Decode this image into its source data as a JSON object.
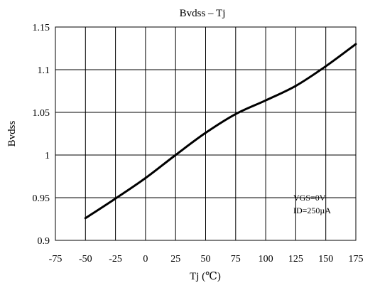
{
  "chart_data": {
    "type": "line",
    "title": "Bvdss  – Tj",
    "xlabel": "Tj (℃)",
    "ylabel": "Bvdss",
    "xlim": [
      -75,
      175
    ],
    "ylim": [
      0.9,
      1.15
    ],
    "xticks": [
      -75,
      -50,
      -25,
      0,
      25,
      50,
      75,
      100,
      125,
      150,
      175
    ],
    "yticks": [
      0.9,
      0.95,
      1,
      1.05,
      1.1,
      1.15
    ],
    "xtick_labels": [
      "-75",
      "-50",
      "-25",
      "0",
      "25",
      "50",
      "75",
      "100",
      "125",
      "150",
      "175"
    ],
    "ytick_labels": [
      "0.9",
      "0.95",
      "1",
      "1.05",
      "1.1",
      "1.15"
    ],
    "grid": true,
    "annotations": [
      "VGS=0V",
      "ID=250µA"
    ],
    "series": [
      {
        "x": [
          -50,
          -25,
          0,
          25,
          50,
          75,
          100,
          125,
          150,
          175
        ],
        "y": [
          0.926,
          0.949,
          0.973,
          1.0,
          1.026,
          1.048,
          1.064,
          1.081,
          1.104,
          1.13
        ]
      }
    ]
  }
}
